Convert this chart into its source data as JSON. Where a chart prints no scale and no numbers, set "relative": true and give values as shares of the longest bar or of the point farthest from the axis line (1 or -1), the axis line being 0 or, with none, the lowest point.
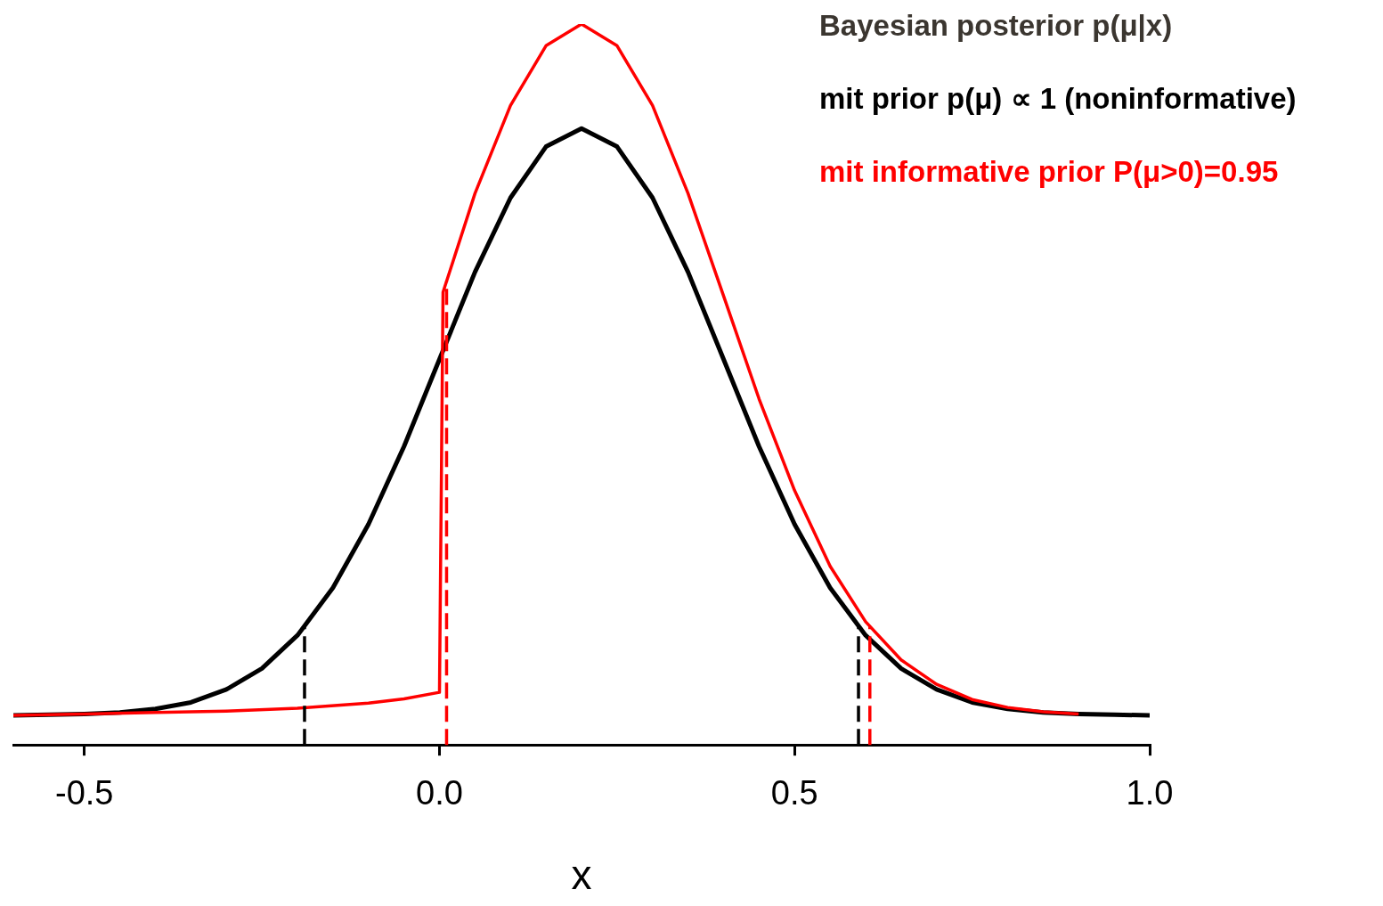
{
  "chart_data": {
    "type": "line",
    "title": "Bayesian posterior p(μ|x)",
    "xlabel": "x",
    "relative": true,
    "xlim": [
      -0.6,
      1.0
    ],
    "xticks": [
      {
        "value": -0.5,
        "label": "-0.5"
      },
      {
        "value": 0,
        "label": "0.0"
      },
      {
        "value": 0.5,
        "label": "0.5"
      },
      {
        "value": 1.0,
        "label": "1.0"
      }
    ],
    "series": [
      {
        "name": "mit prior p(μ) ∝ 1 (noninformative)",
        "color": "#000000",
        "x": [
          -0.6,
          -0.55,
          -0.5,
          -0.45,
          -0.4,
          -0.35,
          -0.3,
          -0.25,
          -0.2,
          -0.15,
          -0.1,
          -0.05,
          0,
          0.05,
          0.1,
          0.15,
          0.2,
          0.25,
          0.3,
          0.35,
          0.4,
          0.45,
          0.5,
          0.55,
          0.6,
          0.65,
          0.7,
          0.75,
          0.8,
          0.85,
          0.9,
          0.95,
          1.0
        ],
        "values": [
          0.041,
          0.042,
          0.043,
          0.045,
          0.05,
          0.059,
          0.077,
          0.106,
          0.152,
          0.218,
          0.306,
          0.414,
          0.535,
          0.656,
          0.759,
          0.83,
          0.855,
          0.83,
          0.759,
          0.656,
          0.535,
          0.414,
          0.306,
          0.218,
          0.152,
          0.106,
          0.077,
          0.059,
          0.05,
          0.045,
          0.043,
          0.042,
          0.041
        ]
      },
      {
        "name": "mit informative prior P(μ>0)=0.95",
        "color": "#ff0000",
        "x": [
          -0.6,
          -0.5,
          -0.4,
          -0.3,
          -0.2,
          -0.1,
          -0.05,
          0,
          0.005,
          0.05,
          0.1,
          0.15,
          0.2,
          0.25,
          0.3,
          0.35,
          0.4,
          0.45,
          0.5,
          0.55,
          0.6,
          0.65,
          0.7,
          0.75,
          0.8,
          0.85,
          0.9
        ],
        "values": [
          0.041,
          0.043,
          0.045,
          0.047,
          0.051,
          0.058,
          0.064,
          0.073,
          0.628,
          0.765,
          0.887,
          0.97,
          1.0,
          0.97,
          0.887,
          0.765,
          0.623,
          0.48,
          0.353,
          0.248,
          0.171,
          0.118,
          0.084,
          0.063,
          0.052,
          0.046,
          0.043
        ]
      }
    ],
    "ref_lines": [
      {
        "axis": "x",
        "value": -0.19,
        "color": "#000000",
        "line_style": "dashed"
      },
      {
        "axis": "x",
        "value": 0.59,
        "color": "#000000",
        "line_style": "dashed"
      },
      {
        "axis": "x",
        "value": 0.01,
        "color": "#ff0000",
        "line_style": "dashed"
      },
      {
        "axis": "x",
        "value": 0.606,
        "color": "#ff0000",
        "line_style": "dashed"
      }
    ],
    "legend": "top right",
    "grid": false,
    "marker": "none",
    "line_style": "solid"
  }
}
